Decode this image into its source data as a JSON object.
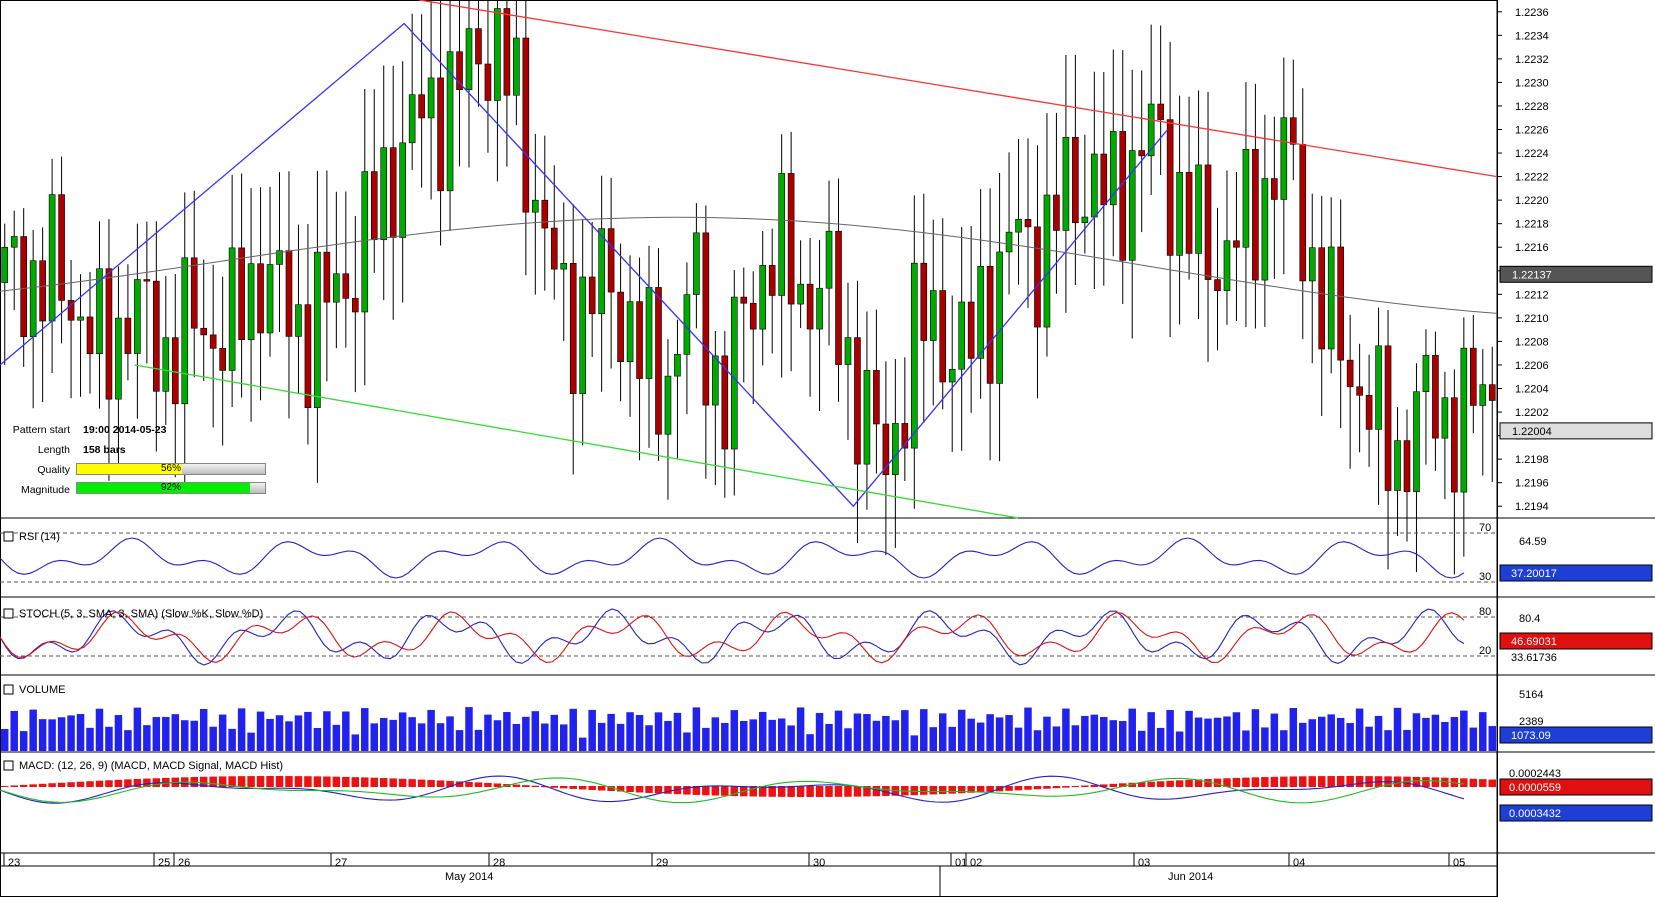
{
  "pattern": {
    "start_label": "Pattern start",
    "start_value": "19:00 2014-05-23",
    "length_label": "Length",
    "length_value": "158 bars",
    "quality_label": "Quality",
    "quality_value": "56%",
    "quality_pct": 56,
    "magnitude_label": "Magnitude",
    "magnitude_value": "92%",
    "magnitude_pct": 92,
    "quality_color": "#ffff00",
    "magnitude_color": "#00ee00"
  },
  "chart_data": [
    {
      "type": "candlestick",
      "panel": "price",
      "ylim": [
        1.2193,
        1.2237
      ],
      "y_ticks": [
        "1.2236",
        "1.2234",
        "1.2232",
        "1.2230",
        "1.2228",
        "1.2226",
        "1.2224",
        "1.2222",
        "1.2220",
        "1.2218",
        "1.2216",
        "1.2214",
        "1.2212",
        "1.2210",
        "1.2208",
        "1.2206",
        "1.2204",
        "1.2202",
        "1.2200",
        "1.2198",
        "1.2196",
        "1.2194"
      ],
      "current_price_label": "1.22004",
      "ma_value_label": "1.22137",
      "x_day_labels": [
        "23",
        "25",
        "26",
        "27",
        "28",
        "29",
        "30",
        "01",
        "02",
        "03",
        "04",
        "05"
      ],
      "x_month_labels": [
        "May 2014",
        "Jun 2014"
      ],
      "bars_count": 158,
      "close_path": [
        1.2213,
        1.2215,
        1.2212,
        1.2214,
        1.2213,
        1.2209,
        1.2207,
        1.2209,
        1.2211,
        1.2209,
        1.2207,
        1.2208,
        1.221,
        1.2209,
        1.2208,
        1.2212,
        1.2214,
        1.2212,
        1.221,
        1.2209,
        1.2211,
        1.2213,
        1.2215,
        1.2218,
        1.2222,
        1.2225,
        1.2227,
        1.2228,
        1.2229,
        1.2231,
        1.2234,
        1.2232,
        1.2228,
        1.2222,
        1.2215,
        1.221,
        1.2211,
        1.2213,
        1.2212,
        1.221,
        1.2206,
        1.2204,
        1.2208,
        1.2213,
        1.2207,
        1.2203,
        1.2209,
        1.2213,
        1.2216,
        1.2214,
        1.2212,
        1.2213,
        1.221,
        1.2205,
        1.2201,
        1.2197,
        1.2203,
        1.2209,
        1.221,
        1.2208,
        1.2206,
        1.2211,
        1.2212,
        1.2217,
        1.2217,
        1.2215,
        1.222,
        1.2222,
        1.2221,
        1.222,
        1.2222,
        1.2224,
        1.2226,
        1.2221,
        1.2218,
        1.2216,
        1.2215,
        1.2217,
        1.2218,
        1.2222,
        1.2224,
        1.2219,
        1.2213,
        1.2209,
        1.2206,
        1.2204,
        1.22,
        1.2198,
        1.2201,
        1.2203,
        1.2202,
        1.2201,
        1.2203,
        1.2205
      ],
      "pattern_lines": {
        "zigzag": [
          [
            0.0,
            1.2206
          ],
          [
            0.27,
            1.2235
          ],
          [
            0.57,
            1.2194
          ],
          [
            0.78,
            1.2226
          ]
        ],
        "resistance": [
          [
            0.28,
            1.2237
          ],
          [
            1.0,
            1.2222
          ]
        ],
        "support": [
          [
            0.09,
            1.2206
          ],
          [
            0.68,
            1.2193
          ]
        ],
        "colors": {
          "zigzag": "#3333ff",
          "resistance": "#ff3333",
          "support": "#33dd33",
          "ma": "#666666"
        }
      }
    },
    {
      "type": "line",
      "panel": "rsi",
      "title": "RSI (14)",
      "levels": [
        "70",
        "30"
      ],
      "labels": [
        "64.59",
        "37.20017"
      ],
      "ylim": [
        20,
        80
      ]
    },
    {
      "type": "line",
      "panel": "stoch",
      "title": "STOCH (5, 3, SMA, 3, SMA)",
      "series_names": [
        "Slow %K",
        "Slow %D"
      ],
      "levels": [
        "80",
        "20"
      ],
      "labels": [
        "80.4",
        "46.69031",
        "33.61736"
      ]
    },
    {
      "type": "bar",
      "panel": "volume",
      "title": "VOLUME",
      "labels": [
        "5164",
        "2389",
        "1073.09"
      ]
    },
    {
      "type": "bar",
      "panel": "macd",
      "title": "MACD: (12, 26, 9)",
      "series_names": [
        "MACD",
        "MACD Signal",
        "MACD Hist"
      ],
      "labels": [
        "0.0002443",
        "0.0000559",
        "0.0003432"
      ]
    }
  ]
}
